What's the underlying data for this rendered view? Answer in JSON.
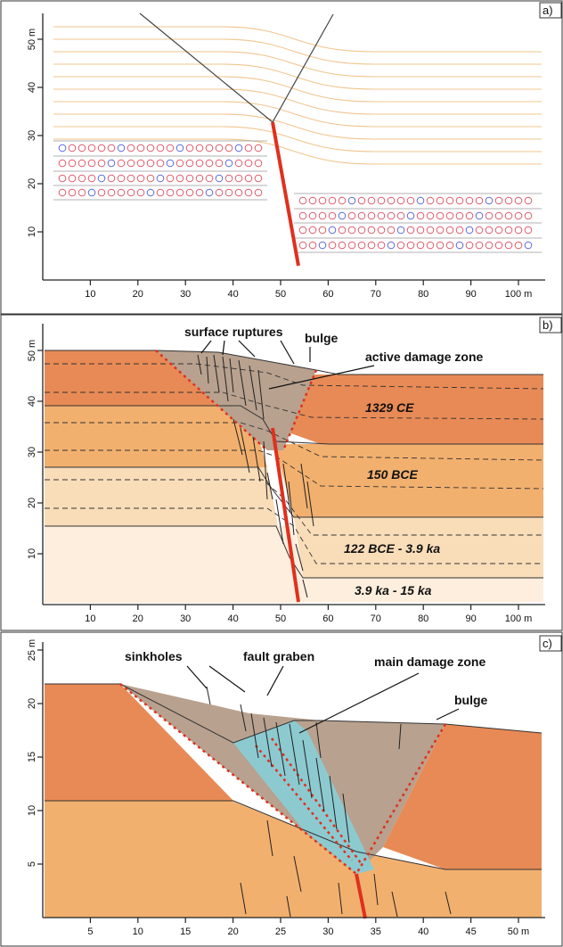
{
  "panels": {
    "a": {
      "label": "a)",
      "x_ticks": [
        "10",
        "20",
        "30",
        "40",
        "50",
        "60",
        "70",
        "80",
        "90",
        "100 m"
      ],
      "y_ticks": [
        "10",
        "20",
        "30",
        "40",
        "50 m"
      ]
    },
    "b": {
      "label": "b)",
      "x_ticks": [
        "10",
        "20",
        "30",
        "40",
        "50",
        "60",
        "70",
        "80",
        "90",
        "100 m"
      ],
      "y_ticks": [
        "10",
        "20",
        "30",
        "40",
        "50 m"
      ],
      "annotations": {
        "surface_ruptures": "surface ruptures",
        "bulge": "bulge",
        "active_damage_zone": "active damage zone"
      },
      "units": [
        "1329 CE",
        "150 BCE",
        "122 BCE - 3.9 ka",
        "3.9 ka - 15 ka"
      ]
    },
    "c": {
      "label": "c)",
      "x_ticks": [
        "5",
        "10",
        "15",
        "20",
        "25",
        "30",
        "35",
        "40",
        "45",
        "50 m"
      ],
      "y_ticks": [
        "5",
        "10",
        "15",
        "20",
        "25 m"
      ],
      "annotations": {
        "sinkholes": "sinkholes",
        "fault_graben": "fault graben",
        "main_damage_zone": "main damage zone",
        "bulge": "bulge"
      }
    }
  },
  "colors": {
    "fault": "#e0301e",
    "layer_top": "#e88a55",
    "layer_mid": "#f2b06e",
    "layer_low": "#f9ddb9",
    "layer_base": "#fdeedd",
    "damage_zone": "#b8a18e",
    "graben": "#8ccad0",
    "line_a": "#f0c58e",
    "circle_red": "#e05a6a",
    "circle_blue": "#5a6ad8"
  }
}
